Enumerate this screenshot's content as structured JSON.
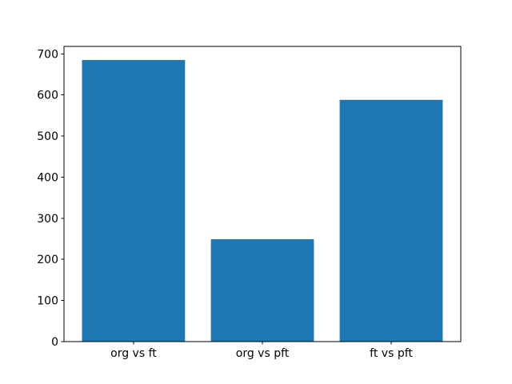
{
  "figure": {
    "background": "#ffffff"
  },
  "chart_data": {
    "type": "bar",
    "title": "",
    "xlabel": "",
    "ylabel": "",
    "categories": [
      "org vs ft",
      "org vs pft",
      "ft vs pft"
    ],
    "values": [
      685,
      249,
      588
    ],
    "yticks": [
      0,
      100,
      200,
      300,
      400,
      500,
      600,
      700
    ],
    "ytick_labels": [
      "0",
      "100",
      "200",
      "300",
      "400",
      "500",
      "600",
      "700"
    ],
    "ylim": [
      0,
      718
    ],
    "xlim": [
      -0.54,
      2.54
    ],
    "bar_width_fraction": 0.8,
    "bar_color": "#1f77b4",
    "axis_color": "#000000",
    "text_color": "#000000",
    "grid": false,
    "legend": "none"
  }
}
